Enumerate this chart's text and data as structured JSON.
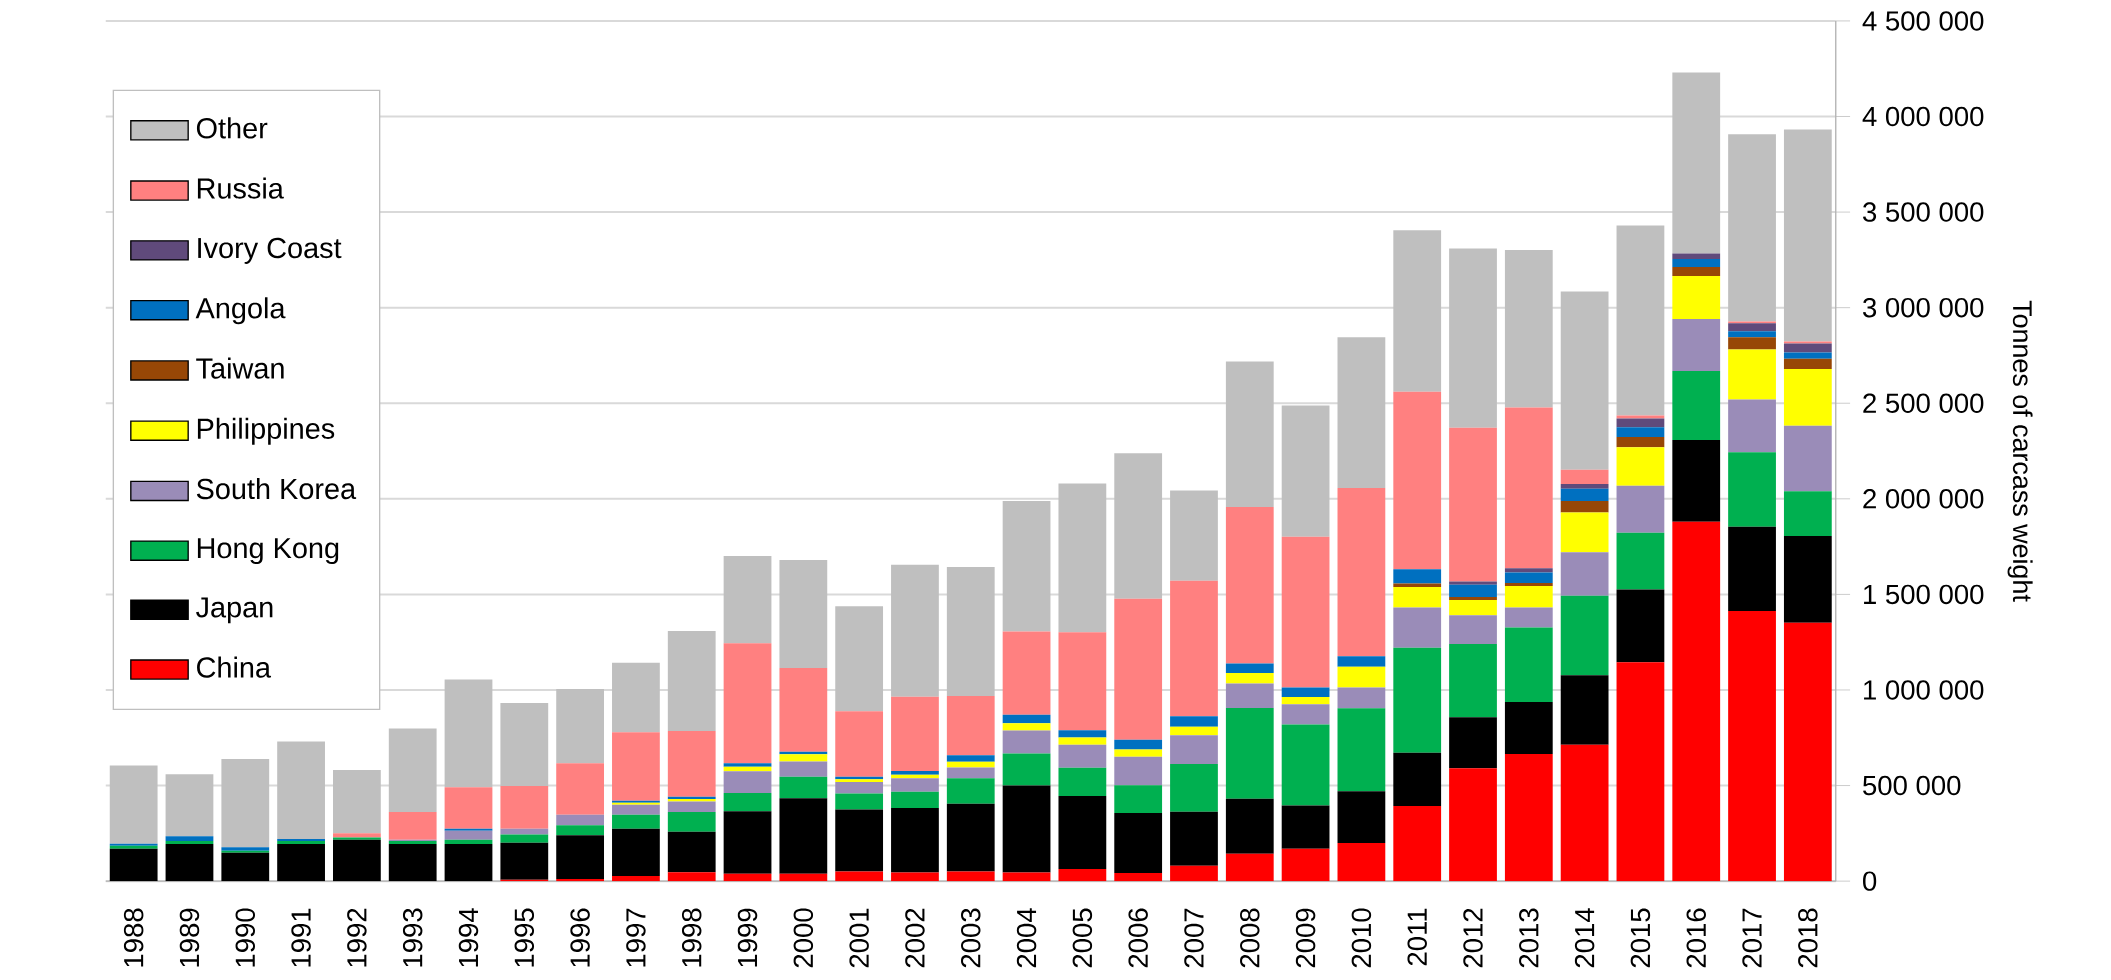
{
  "chart_data": {
    "type": "bar",
    "stacked": true,
    "categories": [
      "1988",
      "1989",
      "1990",
      "1991",
      "1992",
      "1993",
      "1994",
      "1995",
      "1996",
      "1997",
      "1998",
      "1999",
      "2000",
      "2001",
      "2002",
      "2003",
      "2004",
      "2005",
      "2006",
      "2007",
      "2008",
      "2009",
      "2010",
      "2011",
      "2012",
      "2013",
      "2014",
      "2015",
      "2016",
      "2017",
      "2018"
    ],
    "series": [
      {
        "name": "China",
        "color": "#ff0000",
        "values": [
          0,
          0,
          0,
          0,
          0,
          0,
          0,
          7000,
          11000,
          27000,
          46000,
          39000,
          38000,
          50000,
          45000,
          50000,
          45000,
          63000,
          43000,
          80000,
          143000,
          170000,
          200000,
          393000,
          591000,
          665000,
          713000,
          1145000,
          1880000,
          1413000,
          1352000
        ]
      },
      {
        "name": "Japan",
        "color": "#000000",
        "values": [
          170000,
          194000,
          148000,
          194000,
          217000,
          194000,
          194000,
          194000,
          229000,
          247000,
          212000,
          326000,
          395000,
          325000,
          338000,
          355000,
          455000,
          382000,
          313000,
          283000,
          288000,
          225000,
          270000,
          278000,
          266000,
          272000,
          364000,
          380000,
          428000,
          441000,
          454000
        ]
      },
      {
        "name": "Hong Kong",
        "color": "#00b050",
        "values": [
          15000,
          16000,
          11000,
          16000,
          11000,
          16000,
          23000,
          43000,
          52000,
          73000,
          103000,
          96000,
          113000,
          83000,
          85000,
          133000,
          168000,
          148000,
          145000,
          250000,
          475000,
          425000,
          435000,
          550000,
          383000,
          390000,
          416000,
          297000,
          361000,
          390000,
          234000
        ]
      },
      {
        "name": "South Korea",
        "color": "#9a8cb8",
        "values": [
          0,
          0,
          0,
          0,
          0,
          7000,
          46000,
          30000,
          55000,
          52000,
          55000,
          114000,
          80000,
          60000,
          70000,
          57000,
          120000,
          120000,
          150000,
          150000,
          128000,
          105000,
          108000,
          210000,
          151000,
          105000,
          227000,
          246000,
          272000,
          275000,
          342000
        ]
      },
      {
        "name": "Philippines",
        "color": "#ffff00",
        "values": [
          0,
          0,
          0,
          0,
          0,
          0,
          0,
          0,
          0,
          11000,
          14000,
          23000,
          38000,
          15000,
          18000,
          30000,
          38000,
          38000,
          38000,
          45000,
          55000,
          38000,
          108000,
          108000,
          80000,
          112000,
          208000,
          202000,
          224000,
          262000,
          297000
        ]
      },
      {
        "name": "Taiwan",
        "color": "#974706",
        "values": [
          0,
          0,
          0,
          0,
          0,
          0,
          0,
          0,
          0,
          0,
          0,
          0,
          0,
          0,
          0,
          0,
          0,
          0,
          0,
          0,
          0,
          0,
          0,
          18000,
          16000,
          16000,
          60000,
          54000,
          48000,
          64000,
          54000
        ]
      },
      {
        "name": "Angola",
        "color": "#0070c0",
        "values": [
          10000,
          25000,
          18000,
          11000,
          0,
          0,
          11000,
          0,
          0,
          11000,
          11000,
          18000,
          13000,
          13000,
          20000,
          33000,
          45000,
          38000,
          50000,
          55000,
          50000,
          50000,
          55000,
          75000,
          64000,
          54000,
          64000,
          51000,
          41000,
          32000,
          32000
        ]
      },
      {
        "name": "Ivory Coast",
        "color": "#604a7b",
        "values": [
          0,
          0,
          0,
          0,
          0,
          0,
          0,
          0,
          0,
          0,
          0,
          0,
          0,
          0,
          0,
          0,
          0,
          0,
          0,
          0,
          0,
          0,
          0,
          0,
          16000,
          23000,
          26000,
          45000,
          29000,
          42000,
          48000
        ]
      },
      {
        "name": "Russia",
        "color": "#ff8080",
        "values": [
          0,
          0,
          0,
          0,
          23000,
          144000,
          217000,
          224000,
          269000,
          358000,
          345000,
          628000,
          438000,
          343000,
          388000,
          310000,
          435000,
          513000,
          738000,
          708000,
          818000,
          788000,
          880000,
          928000,
          805000,
          841000,
          74000,
          16000,
          0,
          9000,
          10000
        ]
      },
      {
        "name": "Other",
        "color": "#bfbfbf",
        "values": [
          410000,
          324000,
          462000,
          510000,
          331000,
          438000,
          564000,
          434000,
          389000,
          363000,
          522000,
          457000,
          565000,
          549000,
          691000,
          675000,
          682000,
          778000,
          761000,
          472000,
          761000,
          687000,
          789000,
          845000,
          937000,
          824000,
          933000,
          994000,
          947000,
          979000,
          1109000
        ]
      }
    ],
    "ylim": [
      0,
      4500000
    ],
    "yticks": [
      {
        "value": 0,
        "label": "0"
      },
      {
        "value": 500000,
        "label": "500 000"
      },
      {
        "value": 1000000,
        "label": "1 000 000"
      },
      {
        "value": 1500000,
        "label": "1 500 000"
      },
      {
        "value": 2000000,
        "label": "2 000 000"
      },
      {
        "value": 2500000,
        "label": "2 500 000"
      },
      {
        "value": 3000000,
        "label": "3 000 000"
      },
      {
        "value": 3500000,
        "label": "3 500 000"
      },
      {
        "value": 4000000,
        "label": "4 000 000"
      },
      {
        "value": 4500000,
        "label": "4 500 000"
      }
    ],
    "ylabel": "Tonnes of carcass weight",
    "grid": "y",
    "legend": "top left"
  }
}
